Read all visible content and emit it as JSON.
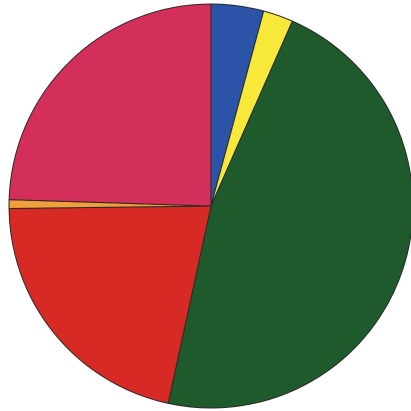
{
  "chart_data": {
    "type": "pie",
    "title": "",
    "legend": "none",
    "start_angle_deg": 0,
    "direction": "clockwise",
    "slices": [
      {
        "value": 4.2,
        "color": "#2b54a8"
      },
      {
        "value": 2.4,
        "color": "#f7e83a"
      },
      {
        "value": 46.8,
        "color": "#1f5a2c"
      },
      {
        "value": 21.4,
        "color": "#d82a24"
      },
      {
        "value": 0.7,
        "color": "#f0a03a"
      },
      {
        "value": 24.5,
        "color": "#d42f5a"
      }
    ]
  }
}
